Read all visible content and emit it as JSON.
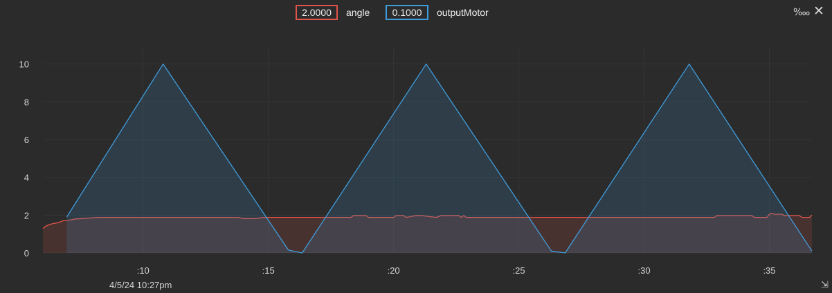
{
  "legend": {
    "series": [
      {
        "value": "2.0000",
        "name": "angle",
        "color": "#e0544b"
      },
      {
        "value": "0.1000",
        "name": "outputMotor",
        "color": "#3f9ddc"
      }
    ]
  },
  "toolbar": {
    "scale_icon": "per-ten-thousand-icon",
    "scale_glyph": "‱",
    "close_icon": "close-icon",
    "close_glyph": "✕",
    "resize_glyph": "⇲"
  },
  "date_label": "4/5/24 10:27pm",
  "chart_data": {
    "type": "area",
    "x_unit": "seconds past 10:27pm",
    "xlim": [
      6,
      36.7
    ],
    "ylim": [
      0,
      10.5
    ],
    "y_ticks": [
      0,
      2,
      4,
      6,
      8,
      10
    ],
    "x_ticks": [
      {
        "value": 10,
        "label": ":10"
      },
      {
        "value": 15,
        "label": ":15"
      },
      {
        "value": 20,
        "label": ":20"
      },
      {
        "value": 25,
        "label": ":25"
      },
      {
        "value": 30,
        "label": ":30"
      },
      {
        "value": 35,
        "label": ":35"
      }
    ],
    "grid": true,
    "series": [
      {
        "name": "angle",
        "color": "#e0544b",
        "fill": "rgba(224,84,75,0.16)",
        "x": [
          6.0,
          6.1,
          6.25,
          6.4,
          6.6,
          6.8,
          7.0,
          7.3,
          7.6,
          7.9,
          8.2,
          13.8,
          14.0,
          14.5,
          14.8,
          15.0,
          15.2,
          18.3,
          18.4,
          18.9,
          19.0,
          20.0,
          20.1,
          20.4,
          20.5,
          20.9,
          21.1,
          21.7,
          21.9,
          22.6,
          22.7,
          22.8,
          22.9,
          32.8,
          32.9,
          34.3,
          34.4,
          34.9,
          35.0,
          35.1,
          35.2,
          35.5,
          35.6,
          36.2,
          36.3,
          36.6,
          36.7
        ],
        "y": [
          1.3,
          1.4,
          1.5,
          1.55,
          1.6,
          1.7,
          1.72,
          1.8,
          1.82,
          1.85,
          1.88,
          1.88,
          1.82,
          1.82,
          1.88,
          1.88,
          1.88,
          1.88,
          1.98,
          1.98,
          1.88,
          1.88,
          1.98,
          1.98,
          1.88,
          1.98,
          1.98,
          1.88,
          1.98,
          1.98,
          1.88,
          1.98,
          1.88,
          1.88,
          1.98,
          1.98,
          1.88,
          1.88,
          2.05,
          2.1,
          2.05,
          2.05,
          1.98,
          1.98,
          1.88,
          1.88,
          2.0
        ]
      },
      {
        "name": "outputMotor",
        "color": "#3f9ddc",
        "fill": "rgba(63,157,220,0.16)",
        "x": [
          6.95,
          10.8,
          15.8,
          16.35,
          21.3,
          26.3,
          26.85,
          31.8,
          36.7
        ],
        "y": [
          1.9,
          10.0,
          0.15,
          0.0,
          10.0,
          0.1,
          0.0,
          10.0,
          0.1
        ]
      }
    ]
  }
}
